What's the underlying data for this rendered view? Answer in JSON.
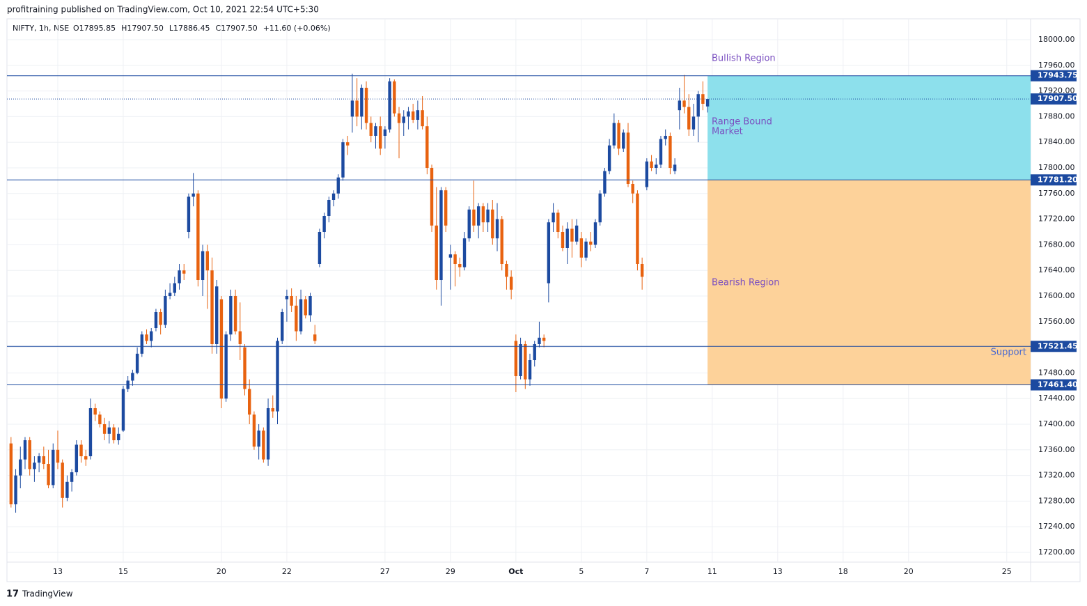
{
  "chart_data": {
    "type": "candlestick",
    "header": "profitraining published on TradingView.com, Oct 10, 2021 22:54 UTC+5:30",
    "symbol": "NIFTY, 1h, NSE",
    "legend_items": [
      "O17895.85",
      "H17907.50",
      "L17886.45",
      "C17907.50",
      "+11.60 (+0.06%)"
    ],
    "footer": "TradingView",
    "up_color": "#1c4aa0",
    "down_color": "#e8620f",
    "xlim": [
      -0.87,
      218.1
    ],
    "ylim": [
      17184.8,
      18032.6
    ],
    "yticks": [
      {
        "value": 17200,
        "label": "17200.00"
      },
      {
        "value": 17240,
        "label": "17240.00"
      },
      {
        "value": 17280,
        "label": "17280.00"
      },
      {
        "value": 17320,
        "label": "17320.00"
      },
      {
        "value": 17360,
        "label": "17360.00"
      },
      {
        "value": 17400,
        "label": "17400.00"
      },
      {
        "value": 17440,
        "label": "17440.00"
      },
      {
        "value": 17480,
        "label": "17480.00"
      },
      {
        "value": 17520,
        "label": "17520.00"
      },
      {
        "value": 17560,
        "label": "17560.00"
      },
      {
        "value": 17600,
        "label": "17600.00"
      },
      {
        "value": 17640,
        "label": "17640.00"
      },
      {
        "value": 17680,
        "label": "17680.00"
      },
      {
        "value": 17720,
        "label": "17720.00"
      },
      {
        "value": 17760,
        "label": "17760.00"
      },
      {
        "value": 17800,
        "label": "17800.00"
      },
      {
        "value": 17840,
        "label": "17840.00"
      },
      {
        "value": 17880,
        "label": "17880.00"
      },
      {
        "value": 17920,
        "label": "17920.00"
      },
      {
        "value": 17960,
        "label": "17960.00"
      },
      {
        "value": 18000,
        "label": "18000.00"
      }
    ],
    "xticks": [
      {
        "value": 10,
        "label": "13"
      },
      {
        "value": 24,
        "label": "15"
      },
      {
        "value": 45,
        "label": "20"
      },
      {
        "value": 59,
        "label": "22"
      },
      {
        "value": 80,
        "label": "27"
      },
      {
        "value": 94,
        "label": "29"
      },
      {
        "value": 108,
        "label": "Oct"
      },
      {
        "value": 122,
        "label": "5"
      },
      {
        "value": 136,
        "label": "7"
      },
      {
        "value": 150,
        "label": "11"
      },
      {
        "value": 164,
        "label": "13"
      },
      {
        "value": 178,
        "label": "18"
      },
      {
        "value": 192,
        "label": "20"
      },
      {
        "value": 213,
        "label": "25"
      }
    ],
    "levels": [
      {
        "value": 17943.75,
        "label": "17943.75"
      },
      {
        "value": 17781.2,
        "label": "17781.20"
      },
      {
        "value": 17521.45,
        "label": "17521.45"
      },
      {
        "value": 17461.4,
        "label": "17461.40"
      }
    ],
    "last_price": {
      "value": 17907.5,
      "label": "17907.50"
    },
    "zones": [
      {
        "from": 17781.2,
        "to": 17943.75,
        "x_start": 149,
        "color": "#8de0ec"
      },
      {
        "from": 17461.4,
        "to": 17781.2,
        "x_start": 149,
        "color": "#fdd29a"
      }
    ],
    "annotations": {
      "bullish": "Bullish  Region",
      "range": [
        "Range Bound",
        "Market"
      ],
      "bearish": "Bearish Region",
      "support": "Support"
    },
    "candles": [
      [
        17370,
        17380,
        17270,
        17275
      ],
      [
        17275,
        17330,
        17262,
        17320
      ],
      [
        17320,
        17365,
        17300,
        17345
      ],
      [
        17345,
        17380,
        17330,
        17375
      ],
      [
        17375,
        17380,
        17320,
        17330
      ],
      [
        17330,
        17350,
        17310,
        17340
      ],
      [
        17340,
        17355,
        17325,
        17350
      ],
      [
        17350,
        17365,
        17330,
        17338
      ],
      [
        17338,
        17360,
        17300,
        17305
      ],
      [
        17305,
        17370,
        17300,
        17360
      ],
      [
        17360,
        17390,
        17330,
        17340
      ],
      [
        17340,
        17345,
        17270,
        17285
      ],
      [
        17285,
        17320,
        17280,
        17310
      ],
      [
        17310,
        17330,
        17295,
        17325
      ],
      [
        17325,
        17375,
        17320,
        17368
      ],
      [
        17368,
        17375,
        17340,
        17350
      ],
      [
        17350,
        17360,
        17335,
        17345
      ],
      [
        17350,
        17440,
        17345,
        17425
      ],
      [
        17425,
        17432,
        17405,
        17415
      ],
      [
        17415,
        17420,
        17395,
        17400
      ],
      [
        17400,
        17410,
        17375,
        17385
      ],
      [
        17385,
        17405,
        17370,
        17395
      ],
      [
        17395,
        17400,
        17370,
        17375
      ],
      [
        17375,
        17395,
        17368,
        17385
      ],
      [
        17390,
        17460,
        17388,
        17455
      ],
      [
        17455,
        17475,
        17450,
        17468
      ],
      [
        17468,
        17485,
        17460,
        17480
      ],
      [
        17480,
        17520,
        17478,
        17510
      ],
      [
        17510,
        17545,
        17505,
        17540
      ],
      [
        17540,
        17548,
        17525,
        17530
      ],
      [
        17530,
        17550,
        17520,
        17545
      ],
      [
        17550,
        17580,
        17545,
        17575
      ],
      [
        17575,
        17580,
        17540,
        17555
      ],
      [
        17555,
        17610,
        17550,
        17600
      ],
      [
        17600,
        17620,
        17595,
        17605
      ],
      [
        17605,
        17630,
        17600,
        17620
      ],
      [
        17620,
        17650,
        17610,
        17640
      ],
      [
        17640,
        17650,
        17625,
        17635
      ],
      [
        17700,
        17760,
        17690,
        17755
      ],
      [
        17755,
        17792,
        17740,
        17760
      ],
      [
        17760,
        17765,
        17615,
        17625
      ],
      [
        17625,
        17680,
        17600,
        17670
      ],
      [
        17670,
        17680,
        17580,
        17640
      ],
      [
        17640,
        17660,
        17510,
        17525
      ],
      [
        17525,
        17625,
        17510,
        17615
      ],
      [
        17595,
        17600,
        17425,
        17440
      ],
      [
        17440,
        17545,
        17435,
        17540
      ],
      [
        17540,
        17610,
        17530,
        17600
      ],
      [
        17600,
        17610,
        17540,
        17545
      ],
      [
        17545,
        17590,
        17500,
        17525
      ],
      [
        17520,
        17525,
        17445,
        17455
      ],
      [
        17455,
        17470,
        17400,
        17415
      ],
      [
        17415,
        17420,
        17360,
        17365
      ],
      [
        17365,
        17400,
        17345,
        17390
      ],
      [
        17390,
        17395,
        17340,
        17345
      ],
      [
        17345,
        17440,
        17335,
        17425
      ],
      [
        17425,
        17445,
        17410,
        17420
      ],
      [
        17420,
        17535,
        17400,
        17530
      ],
      [
        17530,
        17580,
        17525,
        17575
      ],
      [
        17595,
        17610,
        17560,
        17600
      ],
      [
        17600,
        17612,
        17575,
        17585
      ],
      [
        17585,
        17600,
        17530,
        17545
      ],
      [
        17545,
        17610,
        17540,
        17595
      ],
      [
        17595,
        17600,
        17565,
        17570
      ],
      [
        17570,
        17605,
        17560,
        17600
      ],
      [
        17540,
        17555,
        17525,
        17530
      ],
      [
        17650,
        17705,
        17645,
        17700
      ],
      [
        17700,
        17730,
        17690,
        17725
      ],
      [
        17725,
        17755,
        17715,
        17750
      ],
      [
        17750,
        17765,
        17740,
        17760
      ],
      [
        17760,
        17790,
        17752,
        17785
      ],
      [
        17785,
        17845,
        17780,
        17840
      ],
      [
        17840,
        17850,
        17820,
        17835
      ],
      [
        17880,
        17947,
        17855,
        17905
      ],
      [
        17905,
        17940,
        17865,
        17880
      ],
      [
        17880,
        17930,
        17860,
        17925
      ],
      [
        17925,
        17935,
        17860,
        17870
      ],
      [
        17870,
        17880,
        17840,
        17850
      ],
      [
        17850,
        17870,
        17830,
        17865
      ],
      [
        17865,
        17880,
        17820,
        17830
      ],
      [
        17850,
        17865,
        17830,
        17860
      ],
      [
        17860,
        17940,
        17855,
        17935
      ],
      [
        17935,
        17938,
        17880,
        17885
      ],
      [
        17885,
        17895,
        17815,
        17870
      ],
      [
        17870,
        17890,
        17850,
        17880
      ],
      [
        17880,
        17895,
        17860,
        17888
      ],
      [
        17888,
        17900,
        17870,
        17875
      ],
      [
        17875,
        17905,
        17860,
        17890
      ],
      [
        17890,
        17912,
        17860,
        17865
      ],
      [
        17865,
        17880,
        17790,
        17800
      ],
      [
        17800,
        17805,
        17700,
        17710
      ],
      [
        17710,
        17770,
        17610,
        17625
      ],
      [
        17625,
        17770,
        17585,
        17765
      ],
      [
        17765,
        17770,
        17700,
        17710
      ],
      [
        17660,
        17680,
        17610,
        17665
      ],
      [
        17665,
        17670,
        17615,
        17650
      ],
      [
        17650,
        17660,
        17630,
        17645
      ],
      [
        17645,
        17700,
        17640,
        17690
      ],
      [
        17690,
        17740,
        17685,
        17735
      ],
      [
        17735,
        17780,
        17700,
        17710
      ],
      [
        17710,
        17745,
        17690,
        17740
      ],
      [
        17740,
        17745,
        17700,
        17715
      ],
      [
        17715,
        17745,
        17700,
        17735
      ],
      [
        17735,
        17750,
        17680,
        17690
      ],
      [
        17690,
        17745,
        17670,
        17720
      ],
      [
        17720,
        17725,
        17640,
        17650
      ],
      [
        17650,
        17655,
        17610,
        17630
      ],
      [
        17630,
        17640,
        17595,
        17610
      ],
      [
        17530,
        17540,
        17450,
        17475
      ],
      [
        17475,
        17535,
        17470,
        17525
      ],
      [
        17525,
        17530,
        17455,
        17470
      ],
      [
        17470,
        17510,
        17460,
        17500
      ],
      [
        17500,
        17530,
        17490,
        17525
      ],
      [
        17525,
        17560,
        17520,
        17535
      ],
      [
        17535,
        17540,
        17520,
        17530
      ],
      [
        17620,
        17720,
        17590,
        17715
      ],
      [
        17715,
        17745,
        17700,
        17730
      ],
      [
        17730,
        17735,
        17690,
        17700
      ],
      [
        17700,
        17710,
        17670,
        17675
      ],
      [
        17675,
        17715,
        17650,
        17705
      ],
      [
        17705,
        17720,
        17660,
        17685
      ],
      [
        17685,
        17720,
        17680,
        17710
      ],
      [
        17690,
        17700,
        17645,
        17660
      ],
      [
        17660,
        17690,
        17655,
        17685
      ],
      [
        17685,
        17700,
        17670,
        17680
      ],
      [
        17680,
        17720,
        17675,
        17715
      ],
      [
        17715,
        17765,
        17710,
        17760
      ],
      [
        17760,
        17800,
        17755,
        17795
      ],
      [
        17795,
        17845,
        17790,
        17835
      ],
      [
        17835,
        17885,
        17830,
        17870
      ],
      [
        17870,
        17875,
        17820,
        17830
      ],
      [
        17830,
        17860,
        17825,
        17855
      ],
      [
        17855,
        17870,
        17770,
        17775
      ],
      [
        17775,
        17780,
        17745,
        17760
      ],
      [
        17760,
        17765,
        17640,
        17650
      ],
      [
        17650,
        17660,
        17610,
        17630
      ],
      [
        17770,
        17815,
        17765,
        17810
      ],
      [
        17810,
        17820,
        17795,
        17800
      ],
      [
        17800,
        17815,
        17790,
        17805
      ],
      [
        17805,
        17850,
        17800,
        17845
      ],
      [
        17845,
        17860,
        17835,
        17850
      ],
      [
        17850,
        17855,
        17790,
        17800
      ],
      [
        17795,
        17815,
        17790,
        17805
      ],
      [
        17890,
        17925,
        17860,
        17905
      ],
      [
        17905,
        17945,
        17885,
        17895
      ],
      [
        17895,
        17915,
        17850,
        17860
      ],
      [
        17860,
        17900,
        17850,
        17880
      ],
      [
        17880,
        17920,
        17840,
        17915
      ],
      [
        17915,
        17935,
        17890,
        17900
      ],
      [
        17895.85,
        17907.5,
        17886.45,
        17907.5
      ]
    ]
  }
}
